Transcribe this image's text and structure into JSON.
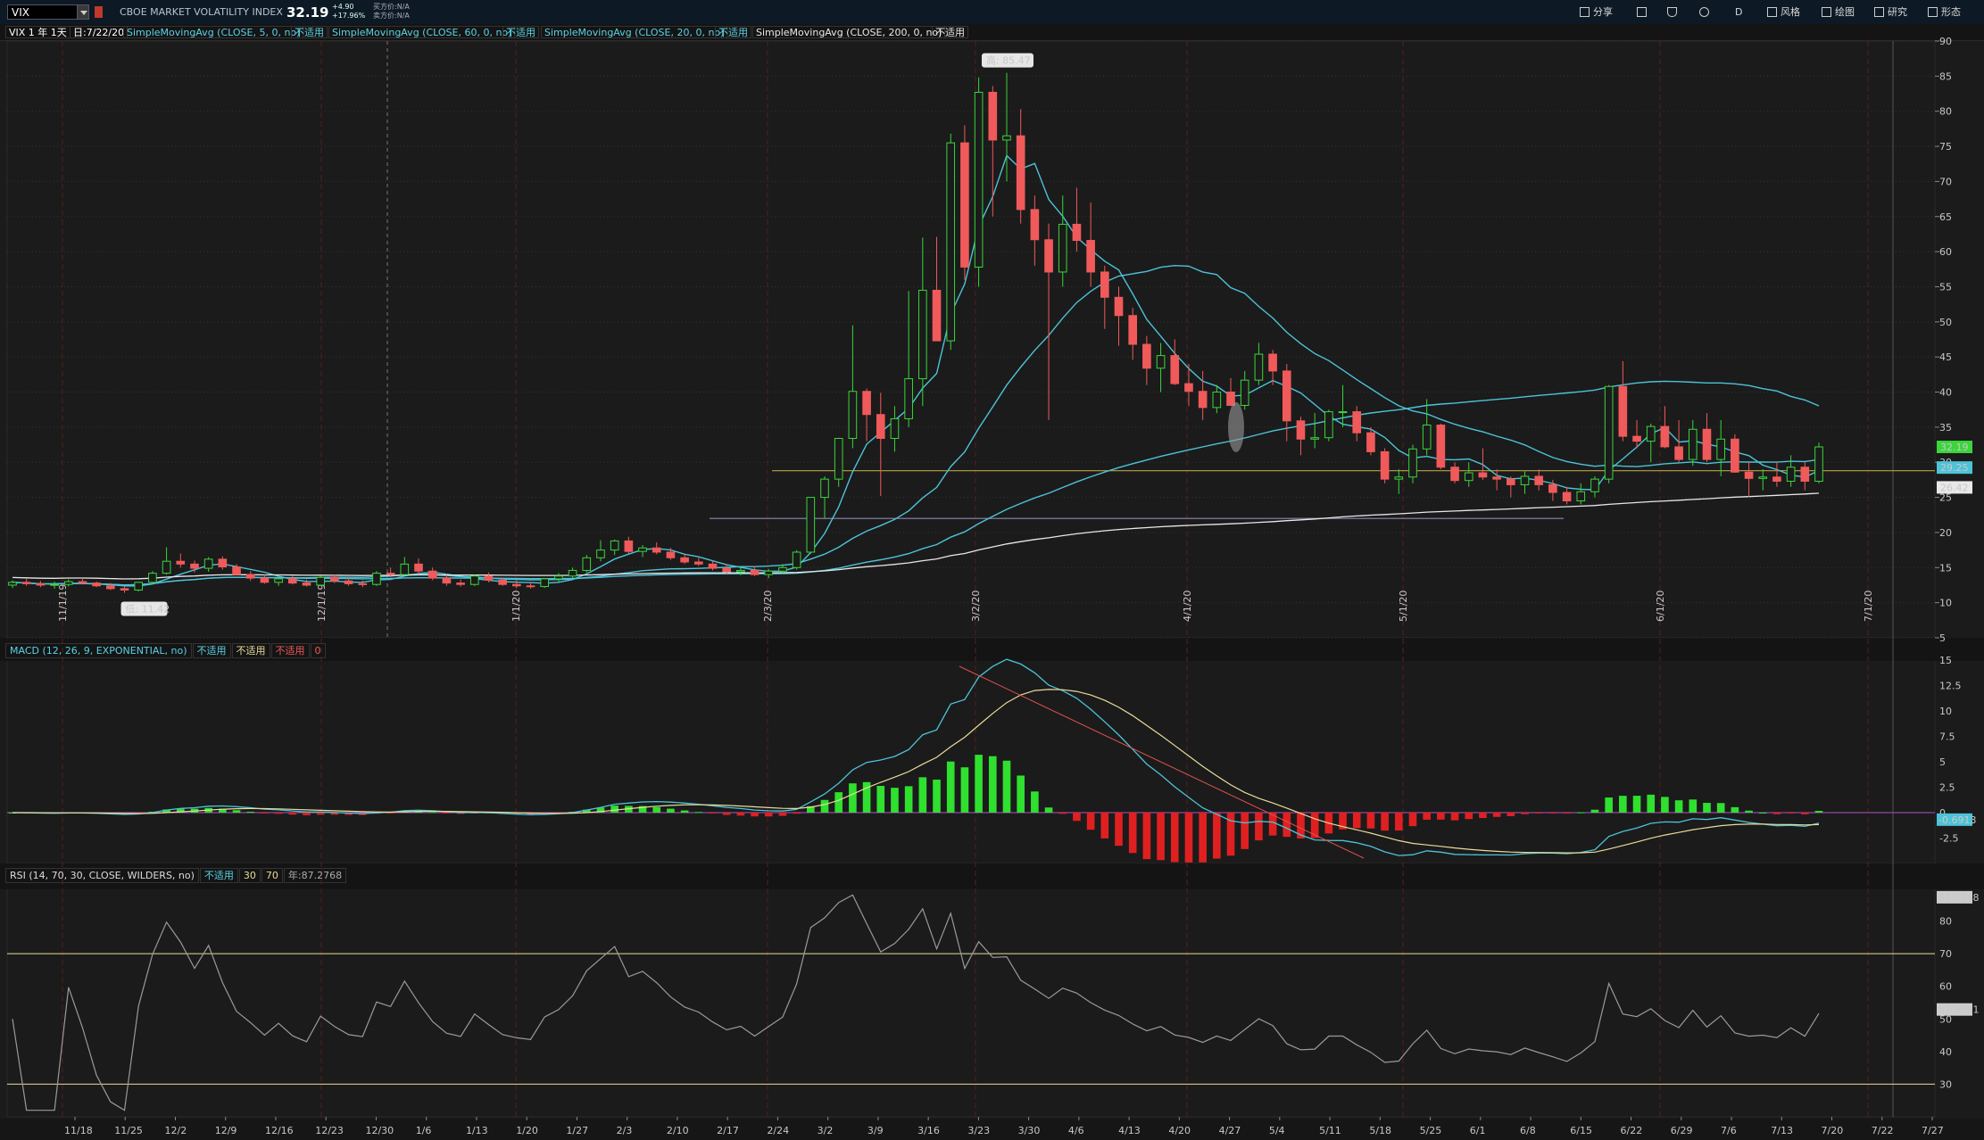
{
  "toolbar": {
    "symbol": "VIX",
    "description": "CBOE MARKET VOLATILITY INDEX",
    "last_price": "32.19",
    "change_abs": "+4.90",
    "change_pct": "+17.96%",
    "bid": "买方价:N/A",
    "ask": "卖方价:N/A",
    "share_label": "分享",
    "period_label": "D",
    "style_label": "风格",
    "drawing_label": "绘图",
    "research_label": "研究",
    "pattern_label": "形态"
  },
  "studies": {
    "period": "VIX 1 年 1天",
    "date": "日:7/22/20",
    "sma5": "SimpleMovingAvg (CLOSE, 5, 0, no)",
    "sma60": "SimpleMovingAvg (CLOSE, 60, 0, no)",
    "sma20": "SimpleMovingAvg (CLOSE, 20, 0, no)",
    "sma200": "SimpleMovingAvg (CLOSE, 200, 0, no)",
    "na": "不适用"
  },
  "macd_header": {
    "title": "MACD (12, 26, 9, EXPONENTIAL, no)",
    "na": "不适用",
    "zero": "0"
  },
  "rsi_header": {
    "title": "RSI (14, 70, 30, CLOSE, WILDERS, no)",
    "na": "不适用",
    "ob": "30",
    "os": "70",
    "value": "年:87.2768"
  },
  "colors": {
    "up": "#3ad63a",
    "down": "#f05a5a",
    "ma_cyan": "#4cc3d8",
    "ma_white": "#e8e8e8",
    "ma_yellow": "#e8dc9a",
    "grid": "#333333",
    "background": "#1b1b1b"
  },
  "chart_data": {
    "type": "candlestick",
    "symbol": "VIX",
    "price_axis": {
      "ylim": [
        5,
        90
      ],
      "ticks": [
        5,
        10,
        15,
        20,
        25,
        30,
        35,
        40,
        45,
        50,
        55,
        60,
        65,
        70,
        75,
        80,
        85,
        90
      ]
    },
    "x_ticks": [
      "11/18",
      "11/25",
      "12/2",
      "12/9",
      "12/16",
      "12/23",
      "12/30",
      "1/6",
      "1/13",
      "1/20",
      "1/27",
      "2/3",
      "2/10",
      "2/17",
      "2/24",
      "3/2",
      "3/9",
      "3/16",
      "3/23",
      "3/30",
      "4/6",
      "4/13",
      "4/20",
      "4/27",
      "5/4",
      "5/11",
      "5/18",
      "5/25",
      "6/1",
      "6/8",
      "6/15",
      "6/22",
      "6/29",
      "7/6",
      "7/13",
      "7/20",
      "7/22",
      "7/27"
    ],
    "annotations": {
      "high": "高: 85.47",
      "low": "低: 11.42"
    },
    "price_labels": [
      {
        "value": "32.19",
        "color": "#3ad63a"
      },
      {
        "value": "29.25",
        "color": "#4cc3d8"
      },
      {
        "value": "26.42",
        "color": "#e8e8e8"
      }
    ],
    "vertical_markers": [
      "11/1/19",
      "12/1/19",
      "1/1/20",
      "2/3/20",
      "3/2/20",
      "4/1/20",
      "5/1/20",
      "6/1/20",
      "7/1/20"
    ],
    "candles": [
      [
        12.5,
        13.2,
        12.1,
        12.9
      ],
      [
        12.9,
        13.4,
        12.4,
        12.7
      ],
      [
        12.7,
        13.1,
        12.2,
        12.5
      ],
      [
        12.5,
        13.0,
        12.0,
        12.6
      ],
      [
        12.6,
        13.3,
        12.3,
        13.0
      ],
      [
        13.0,
        13.5,
        12.6,
        12.8
      ],
      [
        12.8,
        13.0,
        12.2,
        12.4
      ],
      [
        12.4,
        12.8,
        11.8,
        12.0
      ],
      [
        12.0,
        12.3,
        11.42,
        11.8
      ],
      [
        11.8,
        13.0,
        11.6,
        12.9
      ],
      [
        12.9,
        14.5,
        12.8,
        14.2
      ],
      [
        14.2,
        17.9,
        14.0,
        15.9
      ],
      [
        15.9,
        17.0,
        15.0,
        15.5
      ],
      [
        15.5,
        16.0,
        14.3,
        14.9
      ],
      [
        14.9,
        16.5,
        14.4,
        16.2
      ],
      [
        16.2,
        16.6,
        14.7,
        15.1
      ],
      [
        15.1,
        15.5,
        13.9,
        14.0
      ],
      [
        14.0,
        14.5,
        13.1,
        13.5
      ],
      [
        13.5,
        14.0,
        12.7,
        12.9
      ],
      [
        12.9,
        13.6,
        12.4,
        13.4
      ],
      [
        13.4,
        13.9,
        12.6,
        12.8
      ],
      [
        12.8,
        13.3,
        12.3,
        12.5
      ],
      [
        12.5,
        13.8,
        12.4,
        13.6
      ],
      [
        13.6,
        14.0,
        12.8,
        13.1
      ],
      [
        13.1,
        13.6,
        12.4,
        12.7
      ],
      [
        12.7,
        13.2,
        12.2,
        12.6
      ],
      [
        12.6,
        14.5,
        12.4,
        14.2
      ],
      [
        14.2,
        15.0,
        13.6,
        14.0
      ],
      [
        14.0,
        16.5,
        13.9,
        15.5
      ],
      [
        15.5,
        16.3,
        14.0,
        14.5
      ],
      [
        14.5,
        15.0,
        13.2,
        13.5
      ],
      [
        13.5,
        14.0,
        12.4,
        12.8
      ],
      [
        12.8,
        13.3,
        12.3,
        12.6
      ],
      [
        12.6,
        14.0,
        12.4,
        13.8
      ],
      [
        13.8,
        14.3,
        12.9,
        13.2
      ],
      [
        13.2,
        13.6,
        12.4,
        12.6
      ],
      [
        12.6,
        13.2,
        12.1,
        12.4
      ],
      [
        12.4,
        12.9,
        12.0,
        12.3
      ],
      [
        12.3,
        13.5,
        12.1,
        13.4
      ],
      [
        13.4,
        14.2,
        13.0,
        13.8
      ],
      [
        13.8,
        15.0,
        13.5,
        14.6
      ],
      [
        14.6,
        16.8,
        14.3,
        16.4
      ],
      [
        16.4,
        18.9,
        15.9,
        17.5
      ],
      [
        17.5,
        19.0,
        16.8,
        18.8
      ],
      [
        18.8,
        19.4,
        17.0,
        17.3
      ],
      [
        17.3,
        18.2,
        16.5,
        17.8
      ],
      [
        17.8,
        18.6,
        16.9,
        17.2
      ],
      [
        17.2,
        17.8,
        16.1,
        16.4
      ],
      [
        16.4,
        16.9,
        15.5,
        15.8
      ],
      [
        15.8,
        16.4,
        15.2,
        15.5
      ],
      [
        15.5,
        16.0,
        14.6,
        14.9
      ],
      [
        14.9,
        15.4,
        14.0,
        14.4
      ],
      [
        14.4,
        15.1,
        13.9,
        14.6
      ],
      [
        14.6,
        15.2,
        13.8,
        14.0
      ],
      [
        14.0,
        14.8,
        13.5,
        14.5
      ],
      [
        14.5,
        15.5,
        14.2,
        15.0
      ],
      [
        15.0,
        17.5,
        14.7,
        17.2
      ],
      [
        17.2,
        25.0,
        17.0,
        25.0
      ],
      [
        25.0,
        28.0,
        22.0,
        27.6
      ],
      [
        27.6,
        33.5,
        26.5,
        33.4
      ],
      [
        33.4,
        49.5,
        32.0,
        40.1
      ],
      [
        40.1,
        40.5,
        33.0,
        36.8
      ],
      [
        36.8,
        39.9,
        25.2,
        33.4
      ],
      [
        33.4,
        38.0,
        31.5,
        36.2
      ],
      [
        36.2,
        54.4,
        35.0,
        41.9
      ],
      [
        41.9,
        62.0,
        38.0,
        54.5
      ],
      [
        54.5,
        62.1,
        47.3,
        47.3
      ],
      [
        47.3,
        76.8,
        46.0,
        75.5
      ],
      [
        75.5,
        78.0,
        56.0,
        57.8
      ],
      [
        57.8,
        84.8,
        55.0,
        82.7
      ],
      [
        82.7,
        83.6,
        65.0,
        75.9
      ],
      [
        75.9,
        85.47,
        70.0,
        76.5
      ],
      [
        76.5,
        80.3,
        64.0,
        66.0
      ],
      [
        66.0,
        68.0,
        58.0,
        61.7
      ],
      [
        61.7,
        64.0,
        36.0,
        57.1
      ],
      [
        57.1,
        68.0,
        55.0,
        63.9
      ],
      [
        63.9,
        69.1,
        60.0,
        61.6
      ],
      [
        61.6,
        67.0,
        55.0,
        57.1
      ],
      [
        57.1,
        58.0,
        49.0,
        53.5
      ],
      [
        53.5,
        55.0,
        46.6,
        50.9
      ],
      [
        50.9,
        52.0,
        44.6,
        46.8
      ],
      [
        46.8,
        48.0,
        41.0,
        43.4
      ],
      [
        43.4,
        47.0,
        40.0,
        45.2
      ],
      [
        45.2,
        47.5,
        41.0,
        41.2
      ],
      [
        41.2,
        44.0,
        38.0,
        40.1
      ],
      [
        40.1,
        43.0,
        36.0,
        37.8
      ],
      [
        37.8,
        41.0,
        37.0,
        40.0
      ],
      [
        40.0,
        42.0,
        38.0,
        38.1
      ],
      [
        38.1,
        43.0,
        37.5,
        41.7
      ],
      [
        41.7,
        47.0,
        41.0,
        45.4
      ],
      [
        45.4,
        46.0,
        41.0,
        43.0
      ],
      [
        43.0,
        44.0,
        33.0,
        35.9
      ],
      [
        35.9,
        36.5,
        31.0,
        33.3
      ],
      [
        33.3,
        37.0,
        32.0,
        33.5
      ],
      [
        33.5,
        37.5,
        33.0,
        37.2
      ],
      [
        37.2,
        41.0,
        35.0,
        37.2
      ],
      [
        37.2,
        38.0,
        33.0,
        34.2
      ],
      [
        34.2,
        35.0,
        31.0,
        31.5
      ],
      [
        31.5,
        32.0,
        27.0,
        27.6
      ],
      [
        27.6,
        29.0,
        25.5,
        27.9
      ],
      [
        27.9,
        32.5,
        27.0,
        31.9
      ],
      [
        31.9,
        39.0,
        31.0,
        35.3
      ],
      [
        35.3,
        35.5,
        29.0,
        29.3
      ],
      [
        29.3,
        30.0,
        27.0,
        27.4
      ],
      [
        27.4,
        30.0,
        26.5,
        28.5
      ],
      [
        28.5,
        32.0,
        27.5,
        27.9
      ],
      [
        27.9,
        29.0,
        26.0,
        27.6
      ],
      [
        27.6,
        28.0,
        25.0,
        26.8
      ],
      [
        26.8,
        28.7,
        25.5,
        28.0
      ],
      [
        28.0,
        29.0,
        26.0,
        26.8
      ],
      [
        26.8,
        27.5,
        24.5,
        25.7
      ],
      [
        25.7,
        26.5,
        24.0,
        24.5
      ],
      [
        24.5,
        27.0,
        24.0,
        25.8
      ],
      [
        25.8,
        28.0,
        25.0,
        27.6
      ],
      [
        27.6,
        41.0,
        27.0,
        40.8
      ],
      [
        40.8,
        44.4,
        33.0,
        33.7
      ],
      [
        33.7,
        36.0,
        32.0,
        33.0
      ],
      [
        33.0,
        35.5,
        30.0,
        35.1
      ],
      [
        35.1,
        38.0,
        32.0,
        32.2
      ],
      [
        32.2,
        36.0,
        30.0,
        30.4
      ],
      [
        30.4,
        36.0,
        29.5,
        34.7
      ],
      [
        34.7,
        37.0,
        30.0,
        30.4
      ],
      [
        30.4,
        36.0,
        28.0,
        33.3
      ],
      [
        33.3,
        34.0,
        28.5,
        28.6
      ],
      [
        28.6,
        30.0,
        25.0,
        27.7
      ],
      [
        27.7,
        29.0,
        26.0,
        27.9
      ],
      [
        27.9,
        30.0,
        26.5,
        27.3
      ],
      [
        27.3,
        31.0,
        26.5,
        29.3
      ],
      [
        29.3,
        30.0,
        26.0,
        27.3
      ],
      [
        27.3,
        32.8,
        27.0,
        32.19
      ]
    ]
  }
}
